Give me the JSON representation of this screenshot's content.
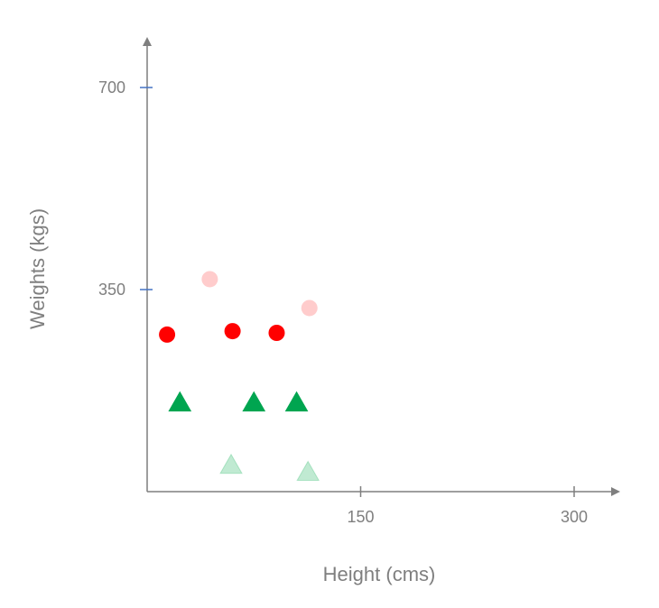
{
  "chart_data": {
    "type": "scatter",
    "title": "",
    "xlabel": "Height (cms)",
    "ylabel": "Weights (kgs)",
    "xlim": [
      0,
      370
    ],
    "ylim": [
      0,
      780
    ],
    "x_ticks": [
      150,
      300
    ],
    "y_ticks": [
      350,
      700
    ],
    "grid": false,
    "legend": "none",
    "colors": {
      "axis": "#7f7f7f",
      "tick_mark": "#4472c4",
      "text": "#7f7f7f"
    },
    "series": [
      {
        "marker": "circle",
        "color": "#ff0000",
        "opacity": 1,
        "points": [
          {
            "x": 14,
            "y": 272
          },
          {
            "x": 60,
            "y": 278
          },
          {
            "x": 91,
            "y": 275
          }
        ]
      },
      {
        "marker": "circle",
        "color": "#ff8080",
        "opacity": 0.4,
        "points": [
          {
            "x": 44,
            "y": 368
          },
          {
            "x": 114,
            "y": 318
          }
        ]
      },
      {
        "marker": "triangle",
        "color": "#00a550",
        "opacity": 1,
        "points": [
          {
            "x": 23,
            "y": 156
          },
          {
            "x": 75,
            "y": 156
          },
          {
            "x": 105,
            "y": 156
          }
        ]
      },
      {
        "marker": "triangle",
        "color": "#2fb86a",
        "opacity": 0.3,
        "points": [
          {
            "x": 59,
            "y": 48
          },
          {
            "x": 113,
            "y": 36
          }
        ]
      }
    ]
  }
}
